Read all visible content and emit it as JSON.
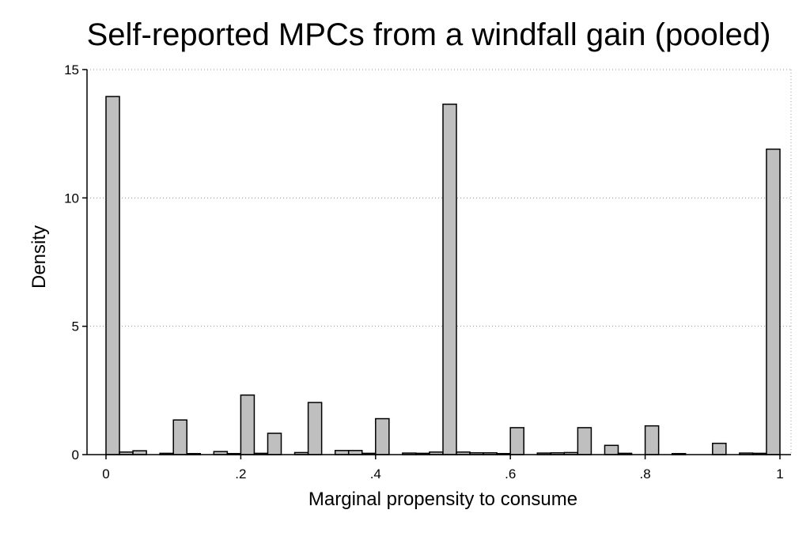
{
  "chart_data": {
    "type": "bar",
    "title": "Self-reported MPCs from a windfall gain (pooled)",
    "xlabel": "Marginal propensity to consume",
    "ylabel": "Density",
    "xlim": [
      0,
      1
    ],
    "ylim": [
      0,
      15
    ],
    "bin_width": 0.02,
    "x_ticks": [
      {
        "value": 0,
        "label": "0"
      },
      {
        "value": 0.2,
        "label": ".2"
      },
      {
        "value": 0.4,
        "label": ".4"
      },
      {
        "value": 0.6,
        "label": ".6"
      },
      {
        "value": 0.8,
        "label": ".8"
      },
      {
        "value": 1,
        "label": "1"
      }
    ],
    "y_ticks": [
      {
        "value": 0,
        "label": "0"
      },
      {
        "value": 5,
        "label": "5"
      },
      {
        "value": 10,
        "label": "10"
      },
      {
        "value": 15,
        "label": "15"
      }
    ],
    "grid": "horizontal dotted",
    "bar_color": "#bfbfbf",
    "bars": [
      {
        "x": 0.0,
        "y": 13.95
      },
      {
        "x": 0.02,
        "y": 0.1
      },
      {
        "x": 0.04,
        "y": 0.15
      },
      {
        "x": 0.08,
        "y": 0.05
      },
      {
        "x": 0.1,
        "y": 1.35
      },
      {
        "x": 0.12,
        "y": 0.04
      },
      {
        "x": 0.16,
        "y": 0.12
      },
      {
        "x": 0.18,
        "y": 0.04
      },
      {
        "x": 0.2,
        "y": 2.32
      },
      {
        "x": 0.22,
        "y": 0.05
      },
      {
        "x": 0.24,
        "y": 0.83
      },
      {
        "x": 0.28,
        "y": 0.08
      },
      {
        "x": 0.3,
        "y": 2.03
      },
      {
        "x": 0.34,
        "y": 0.16
      },
      {
        "x": 0.36,
        "y": 0.16
      },
      {
        "x": 0.38,
        "y": 0.05
      },
      {
        "x": 0.4,
        "y": 1.4
      },
      {
        "x": 0.44,
        "y": 0.06
      },
      {
        "x": 0.46,
        "y": 0.05
      },
      {
        "x": 0.48,
        "y": 0.1
      },
      {
        "x": 0.5,
        "y": 13.65
      },
      {
        "x": 0.52,
        "y": 0.1
      },
      {
        "x": 0.54,
        "y": 0.07
      },
      {
        "x": 0.56,
        "y": 0.07
      },
      {
        "x": 0.58,
        "y": 0.04
      },
      {
        "x": 0.6,
        "y": 1.05
      },
      {
        "x": 0.64,
        "y": 0.06
      },
      {
        "x": 0.66,
        "y": 0.07
      },
      {
        "x": 0.68,
        "y": 0.08
      },
      {
        "x": 0.7,
        "y": 1.05
      },
      {
        "x": 0.74,
        "y": 0.36
      },
      {
        "x": 0.76,
        "y": 0.05
      },
      {
        "x": 0.8,
        "y": 1.12
      },
      {
        "x": 0.84,
        "y": 0.04
      },
      {
        "x": 0.9,
        "y": 0.44
      },
      {
        "x": 0.94,
        "y": 0.06
      },
      {
        "x": 0.96,
        "y": 0.05
      },
      {
        "x": 0.98,
        "y": 11.9
      }
    ]
  }
}
